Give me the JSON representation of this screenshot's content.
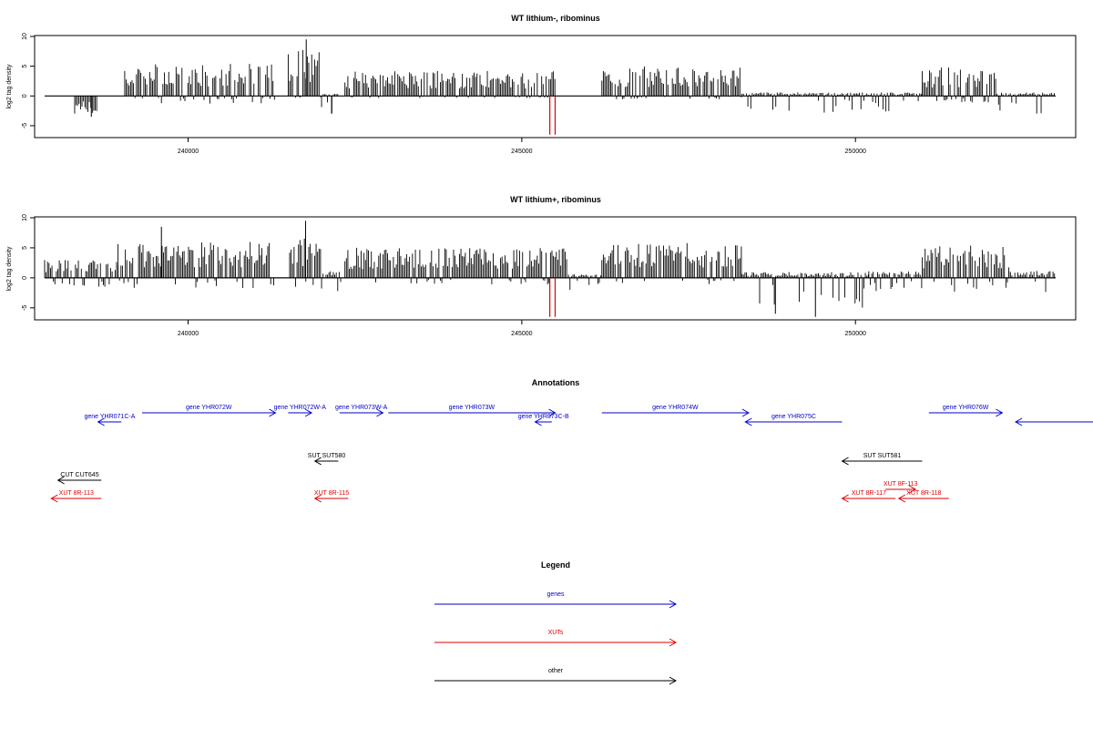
{
  "colors": {
    "genes": "#0000cc",
    "xuts": "#dd0000",
    "other": "#000000",
    "marker": "#dd0000"
  },
  "chart_data": [
    {
      "type": "bar",
      "title": "WT lithium-, ribominus",
      "ylabel": "log2 tag density",
      "xlim": [
        237700,
        253300
      ],
      "ylim": [
        -7,
        10
      ],
      "x_ticks": [
        "240000",
        "245000",
        "250000"
      ],
      "y_ticks": [
        "10",
        "5",
        "0",
        "-5"
      ],
      "baseline_range": [
        237850,
        253000
      ],
      "marker_positions": [
        245420,
        245500
      ],
      "marker_ylim": [
        -6.5,
        0
      ],
      "segments": [
        {
          "start": 238300,
          "end": 238650,
          "pos": 0,
          "neg": 3
        },
        {
          "start": 239050,
          "end": 241300,
          "pos": 4.5,
          "neg": 1.2
        },
        {
          "start": 241500,
          "end": 242000,
          "pos": 6.5,
          "neg": 0.3
        },
        {
          "start": 242000,
          "end": 242250,
          "pos": 0.3,
          "neg": 2.5
        },
        {
          "start": 242350,
          "end": 245500,
          "pos": 3.5,
          "neg": 0.3
        },
        {
          "start": 246200,
          "end": 248300,
          "pos": 4.2,
          "neg": 0.5
        },
        {
          "start": 248300,
          "end": 251000,
          "pos": 0.5,
          "neg": 2.5
        },
        {
          "start": 251000,
          "end": 252100,
          "pos": 4,
          "neg": 1
        },
        {
          "start": 252100,
          "end": 253000,
          "pos": 0.5,
          "neg": 3
        }
      ],
      "spikes": [
        {
          "x": 241770,
          "y": 9.5
        },
        {
          "x": 238550,
          "y": -3.5
        },
        {
          "x": 242150,
          "y": -3
        }
      ]
    },
    {
      "type": "bar",
      "title": "WT lithium+, ribominus",
      "ylabel": "log2 tag density",
      "xlim": [
        237700,
        253300
      ],
      "ylim": [
        -7,
        10
      ],
      "x_ticks": [
        "240000",
        "245000",
        "250000"
      ],
      "y_ticks": [
        "10",
        "5",
        "0",
        "-5"
      ],
      "baseline_range": [
        237850,
        253000
      ],
      "marker_positions": [
        245420,
        245500
      ],
      "marker_ylim": [
        -6.5,
        0
      ],
      "segments": [
        {
          "start": 237850,
          "end": 238950,
          "pos": 2.5,
          "neg": 1.5
        },
        {
          "start": 238950,
          "end": 241300,
          "pos": 5,
          "neg": 1.5
        },
        {
          "start": 241500,
          "end": 242000,
          "pos": 5.5,
          "neg": 2
        },
        {
          "start": 242000,
          "end": 242300,
          "pos": 1,
          "neg": 2
        },
        {
          "start": 242350,
          "end": 245700,
          "pos": 4.2,
          "neg": 1
        },
        {
          "start": 245700,
          "end": 246200,
          "pos": 0.5,
          "neg": 2
        },
        {
          "start": 246200,
          "end": 248300,
          "pos": 5,
          "neg": 1
        },
        {
          "start": 248300,
          "end": 250200,
          "pos": 0.8,
          "neg": 4.5
        },
        {
          "start": 250200,
          "end": 251000,
          "pos": 1,
          "neg": 2
        },
        {
          "start": 251000,
          "end": 252300,
          "pos": 4.5,
          "neg": 2
        },
        {
          "start": 252300,
          "end": 253000,
          "pos": 1,
          "neg": 2.5
        }
      ],
      "spikes": [
        {
          "x": 239600,
          "y": 8.5
        },
        {
          "x": 241760,
          "y": 9.5
        },
        {
          "x": 249400,
          "y": -6.5
        },
        {
          "x": 248800,
          "y": -6
        }
      ]
    }
  ],
  "annotations": {
    "title": "Annotations",
    "items": [
      {
        "label": "gene YHR072W",
        "type": "gene",
        "row": 0,
        "start": 239310,
        "end": 241310,
        "strand": "+"
      },
      {
        "label": "gene YHR072W-A",
        "type": "gene",
        "row": 0,
        "start": 241500,
        "end": 241850,
        "strand": "+"
      },
      {
        "label": "gene YHR073W-A",
        "type": "gene",
        "row": 0,
        "start": 242270,
        "end": 242920,
        "strand": "+"
      },
      {
        "label": "gene YHR073W",
        "type": "gene",
        "row": 0,
        "start": 243000,
        "end": 245500,
        "strand": "+"
      },
      {
        "label": "gene YHR074W",
        "type": "gene",
        "row": 0,
        "start": 246200,
        "end": 248400,
        "strand": "+"
      },
      {
        "label": "gene YHR076W",
        "type": "gene",
        "row": 0,
        "start": 251100,
        "end": 252200,
        "strand": "+"
      },
      {
        "label": "gene YHR071C-A",
        "type": "gene",
        "row": 1,
        "start": 238650,
        "end": 239000,
        "strand": "-"
      },
      {
        "label": "gene YHR073C-B",
        "type": "gene",
        "row": 1,
        "start": 245200,
        "end": 245450,
        "strand": "-"
      },
      {
        "label": "gene YHR075C",
        "type": "gene",
        "row": 1,
        "start": 248350,
        "end": 249800,
        "strand": "-"
      },
      {
        "label": "",
        "type": "gene",
        "row": 1,
        "start": 252400,
        "end": 253600,
        "strand": "-"
      },
      {
        "label": "SUT SUT580",
        "type": "other",
        "row": 2,
        "start": 241900,
        "end": 242250,
        "strand": "-"
      },
      {
        "label": "SUT SUT581",
        "type": "other",
        "row": 2,
        "start": 249800,
        "end": 251000,
        "strand": "-"
      },
      {
        "label": "CUT CUT645",
        "type": "other",
        "row": 3,
        "start": 238050,
        "end": 238700,
        "strand": "-"
      },
      {
        "label": "XUT 8F-113",
        "type": "xut",
        "row": 4,
        "start": 250450,
        "end": 250900,
        "strand": "+"
      },
      {
        "label": "XUT 8R-113",
        "type": "xut",
        "row": 5,
        "start": 237950,
        "end": 238700,
        "strand": "-"
      },
      {
        "label": "XUT 8R-115",
        "type": "xut",
        "row": 5,
        "start": 241900,
        "end": 242400,
        "strand": "-"
      },
      {
        "label": "XUT 8R-117",
        "type": "xut",
        "row": 5,
        "start": 249800,
        "end": 250600,
        "strand": "-"
      },
      {
        "label": "XUT 8R-118",
        "type": "xut",
        "row": 5,
        "start": 250650,
        "end": 251400,
        "strand": "-"
      }
    ]
  },
  "legend": {
    "title": "Legend",
    "entries": [
      {
        "label": "genes",
        "type": "gene"
      },
      {
        "label": "XUTs",
        "type": "xut"
      },
      {
        "label": "other",
        "type": "other"
      }
    ]
  }
}
